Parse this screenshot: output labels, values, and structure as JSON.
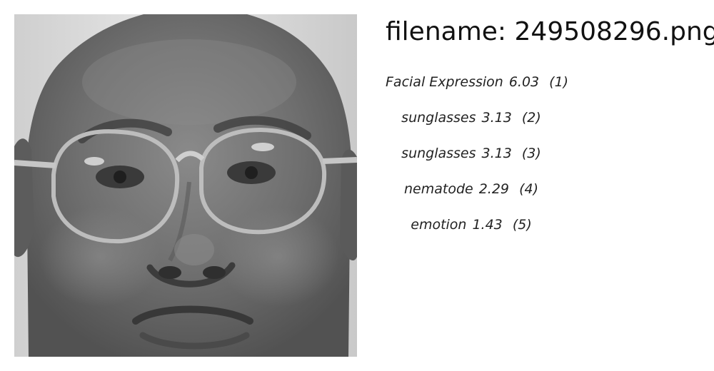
{
  "image": {
    "subject": "grayscale-face-photo"
  },
  "filename": {
    "label": "filename:",
    "value": "249508296.png"
  },
  "predictions": [
    {
      "label": "Facial Expression",
      "score": "6.03",
      "rank": "(1)"
    },
    {
      "label": "sunglasses",
      "score": "3.13",
      "rank": "(2)"
    },
    {
      "label": "sunglasses",
      "score": "3.13",
      "rank": "(3)"
    },
    {
      "label": "nematode",
      "score": "2.29",
      "rank": "(4)"
    },
    {
      "label": "emotion",
      "score": "1.43",
      "rank": "(5)"
    }
  ]
}
